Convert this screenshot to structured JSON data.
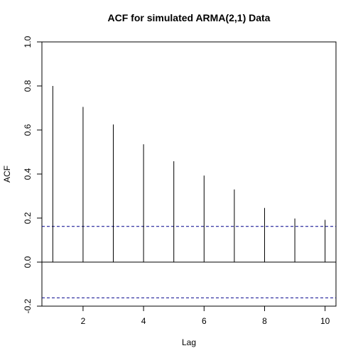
{
  "chart_data": {
    "type": "bar",
    "title": "ACF for simulated ARMA(2,1) Data",
    "xlabel": "Lag",
    "ylabel": "ACF",
    "x": [
      1,
      2,
      3,
      4,
      5,
      6,
      7,
      8,
      9,
      10
    ],
    "values": [
      0.8,
      0.705,
      0.625,
      0.535,
      0.458,
      0.393,
      0.33,
      0.246,
      0.198,
      0.192
    ],
    "xlim": [
      0.64,
      10.36
    ],
    "ylim": [
      -0.2,
      1.0
    ],
    "x_ticks": [
      "2",
      "4",
      "6",
      "8",
      "10"
    ],
    "y_ticks": [
      "-0.2",
      "0.0",
      "0.2",
      "0.4",
      "0.6",
      "0.8",
      "1.0"
    ],
    "confidence_bounds": [
      0.162,
      -0.162
    ],
    "confidence_color": "#00008b",
    "bar_color": "#000000",
    "grid": false,
    "legend": "none"
  }
}
